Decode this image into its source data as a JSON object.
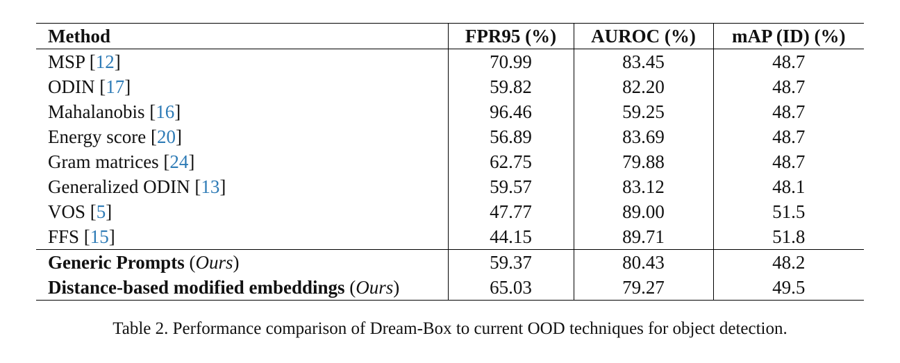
{
  "table": {
    "header": [
      "Method",
      "FPR95 (%)",
      "AUROC (%)",
      "mAP (ID) (%)"
    ],
    "rows": [
      {
        "method": [
          {
            "text": "MSP ["
          },
          {
            "text": "12",
            "style": "cite"
          },
          {
            "text": "]"
          }
        ],
        "cells": [
          "70.99",
          "83.45",
          "48.7"
        ]
      },
      {
        "method": [
          {
            "text": "ODIN ["
          },
          {
            "text": "17",
            "style": "cite"
          },
          {
            "text": "]"
          }
        ],
        "cells": [
          "59.82",
          "82.20",
          "48.7"
        ]
      },
      {
        "method": [
          {
            "text": "Mahalanobis ["
          },
          {
            "text": "16",
            "style": "cite"
          },
          {
            "text": "]"
          }
        ],
        "cells": [
          "96.46",
          "59.25",
          "48.7"
        ]
      },
      {
        "method": [
          {
            "text": "Energy score ["
          },
          {
            "text": "20",
            "style": "cite"
          },
          {
            "text": "]"
          }
        ],
        "cells": [
          "56.89",
          "83.69",
          "48.7"
        ]
      },
      {
        "method": [
          {
            "text": "Gram matrices ["
          },
          {
            "text": "24",
            "style": "cite"
          },
          {
            "text": "]"
          }
        ],
        "cells": [
          "62.75",
          "79.88",
          "48.7"
        ]
      },
      {
        "method": [
          {
            "text": "Generalized ODIN ["
          },
          {
            "text": "13",
            "style": "cite"
          },
          {
            "text": "]"
          }
        ],
        "cells": [
          "59.57",
          "83.12",
          "48.1"
        ]
      },
      {
        "method": [
          {
            "text": "VOS ["
          },
          {
            "text": "5",
            "style": "cite"
          },
          {
            "text": "]"
          }
        ],
        "cells": [
          "47.77",
          "89.00",
          "51.5"
        ]
      },
      {
        "method": [
          {
            "text": "FFS ["
          },
          {
            "text": "15",
            "style": "cite"
          },
          {
            "text": "]"
          }
        ],
        "cells": [
          "44.15",
          "89.71",
          "51.8"
        ]
      },
      {
        "method": [
          {
            "text": "Generic Prompts",
            "style": "bold"
          },
          {
            "text": " ("
          },
          {
            "text": "Ours",
            "style": "italic"
          },
          {
            "text": ")"
          }
        ],
        "cells": [
          "59.37",
          "80.43",
          "48.2"
        ],
        "separator": true
      },
      {
        "method": [
          {
            "text": "Distance-based modified embeddings",
            "style": "bold"
          },
          {
            "text": " ("
          },
          {
            "text": "Ours",
            "style": "italic"
          },
          {
            "text": ")"
          }
        ],
        "cells": [
          "65.03",
          "79.27",
          "49.5"
        ]
      }
    ]
  },
  "caption": "Table 2. Performance comparison of Dream-Box to current OOD techniques for object detection."
}
